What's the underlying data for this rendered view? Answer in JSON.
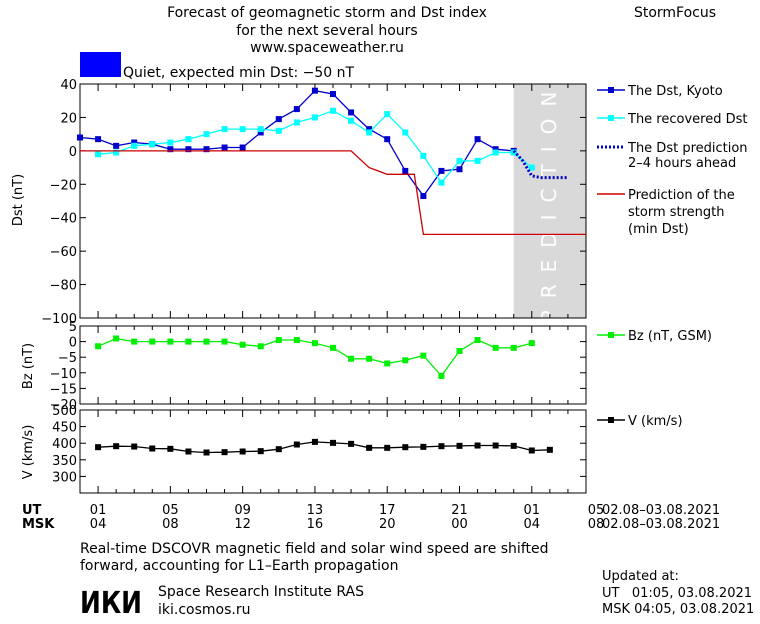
{
  "header": {
    "title_lines": [
      "Forecast of geomagnetic storm and Dst index",
      "for the next several hours",
      "www.spaceweather.ru"
    ],
    "brand": "StormFocus"
  },
  "status": {
    "label": "Quiet, expected min Dst: −50 nT",
    "swatch_color": "#0000ff"
  },
  "legend": {
    "dst_kyoto": "The Dst, Kyoto",
    "dst_recovered": "The recovered Dst",
    "dst_prediction_lines": [
      "The Dst prediction",
      "2–4 hours ahead"
    ],
    "storm_strength_lines": [
      "Prediction of the",
      "storm strength",
      "(min Dst)"
    ],
    "bz": "Bz (nT, GSM)",
    "v": "V (km/s)"
  },
  "time_axis": {
    "ut_label": "UT",
    "msk_label": "MSK",
    "ut_ticks": [
      "01",
      "05",
      "09",
      "13",
      "17",
      "21",
      "01",
      "05"
    ],
    "msk_ticks": [
      "04",
      "08",
      "12",
      "16",
      "20",
      "00",
      "04",
      "08"
    ],
    "ut_range": "02.08–03.08.2021",
    "msk_range": "02.08–03.08.2021"
  },
  "footer": {
    "note_lines": [
      "Real-time DSCOVR magnetic field and solar wind speed are shifted",
      "forward, accounting for L1–Earth propagation"
    ],
    "logo_text": "ИКИ",
    "institute": "Space Research Institute RAS",
    "website": "iki.cosmos.ru",
    "updated_label": "Updated at:",
    "updated_ut": "UT   01:05, 03.08.2021",
    "updated_msk": "MSK 04:05, 03.08.2021"
  },
  "prediction_text": "PREDICTION",
  "colors": {
    "dst_kyoto": "#0000cc",
    "dst_recovered": "#00ffff",
    "dst_prediction": "#0000cc",
    "storm_strength": "#cc0000",
    "bz": "#00ee00",
    "v": "#000000",
    "prediction_band": "#d9d9d9"
  },
  "chart_data": [
    {
      "type": "line",
      "panel": "dst",
      "ylabel": "Dst (nT)",
      "xlim": [
        0,
        28
      ],
      "ylim": [
        -100,
        40
      ],
      "yticks": [
        40,
        20,
        0,
        -20,
        -40,
        -60,
        -80,
        -100
      ],
      "x_unit": "hours since 00 UT 02.08.2021",
      "prediction_band_x": [
        24,
        28
      ],
      "series": [
        {
          "name": "The Dst, Kyoto",
          "style": "line-square",
          "x": [
            0,
            1,
            2,
            3,
            4,
            5,
            6,
            7,
            8,
            9,
            10,
            11,
            12,
            13,
            14,
            15,
            16,
            17,
            18,
            19,
            20,
            21,
            22,
            23,
            24
          ],
          "y": [
            8,
            7,
            3,
            5,
            4,
            1,
            1,
            1,
            2,
            2,
            11,
            19,
            25,
            36,
            34,
            23,
            13,
            7,
            -12,
            -27,
            -12,
            -11,
            7,
            1,
            0
          ]
        },
        {
          "name": "The recovered Dst",
          "style": "line-square",
          "x": [
            1,
            2,
            3,
            4,
            5,
            6,
            7,
            8,
            9,
            10,
            11,
            12,
            13,
            14,
            15,
            16,
            17,
            18,
            19,
            20,
            21,
            22,
            23,
            24,
            25
          ],
          "y": [
            -2,
            -1,
            3,
            4,
            5,
            7,
            10,
            13,
            13,
            13,
            12,
            17,
            20,
            24,
            18,
            11,
            22,
            11,
            -3,
            -19,
            -6,
            -6,
            -1,
            -1,
            -10
          ]
        },
        {
          "name": "The Dst prediction 2–4 hours ahead",
          "style": "dotted",
          "x": [
            24,
            24.5,
            25,
            25.5,
            26,
            26.5,
            27
          ],
          "y": [
            0,
            -6,
            -15,
            -16,
            -16,
            -16,
            -16
          ]
        },
        {
          "name": "Prediction of the storm strength (min Dst)",
          "style": "step",
          "x": [
            0,
            15,
            16,
            17,
            18,
            18.5,
            19,
            28
          ],
          "y": [
            0,
            0,
            -10,
            -14,
            -14,
            -14,
            -50,
            -50
          ]
        }
      ]
    },
    {
      "type": "line",
      "panel": "bz",
      "ylabel": "Bz (nT)",
      "xlim": [
        0,
        28
      ],
      "ylim": [
        -20,
        5
      ],
      "yticks": [
        5,
        0,
        -5,
        -10,
        -15,
        -20
      ],
      "series": [
        {
          "name": "Bz (nT, GSM)",
          "style": "line-square",
          "x": [
            1,
            2,
            3,
            4,
            5,
            6,
            7,
            8,
            9,
            10,
            11,
            12,
            13,
            14,
            15,
            16,
            17,
            18,
            19,
            20,
            21,
            22,
            23,
            24,
            25
          ],
          "y": [
            -1.5,
            1,
            0,
            0,
            0,
            0,
            0,
            0,
            -1,
            -1.5,
            0.5,
            0.5,
            -0.5,
            -2,
            -5.5,
            -5.5,
            -7,
            -6,
            -4.5,
            -11,
            -3,
            0.5,
            -2,
            -2,
            -0.5
          ]
        }
      ]
    },
    {
      "type": "line",
      "panel": "v",
      "ylabel": "V (km/s)",
      "xlim": [
        0,
        28
      ],
      "ylim": [
        250,
        500
      ],
      "yticks": [
        500,
        450,
        400,
        350,
        300
      ],
      "series": [
        {
          "name": "V (km/s)",
          "style": "line-square",
          "x": [
            1,
            2,
            3,
            4,
            5,
            6,
            7,
            8,
            9,
            10,
            11,
            12,
            13,
            14,
            15,
            16,
            17,
            18,
            19,
            20,
            21,
            22,
            23,
            24,
            25,
            26
          ],
          "y": [
            388,
            391,
            390,
            384,
            383,
            375,
            372,
            373,
            375,
            376,
            382,
            396,
            404,
            401,
            398,
            386,
            386,
            388,
            389,
            391,
            392,
            393,
            393,
            392,
            378,
            380
          ]
        }
      ]
    }
  ]
}
